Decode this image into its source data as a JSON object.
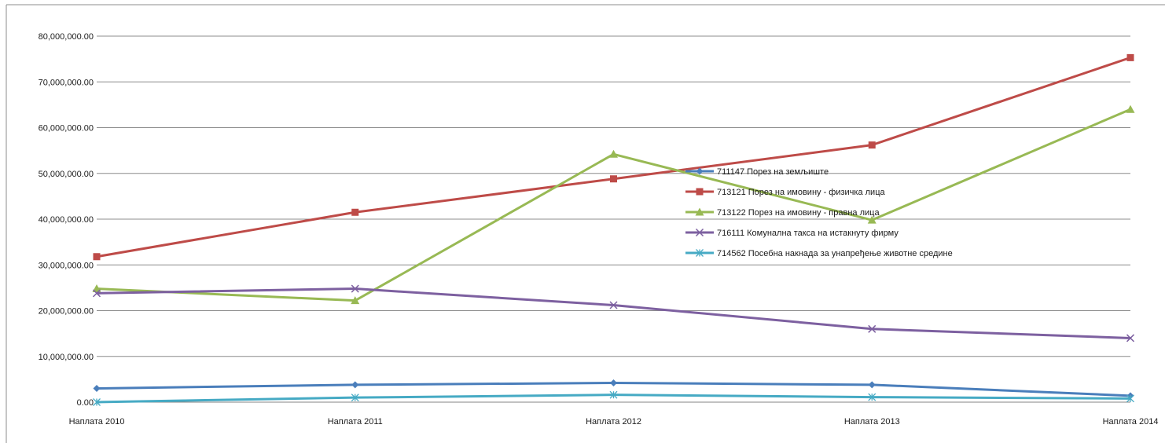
{
  "chart_data": {
    "type": "line",
    "title": "",
    "xlabel": "",
    "ylabel": "",
    "categories": [
      "Наплата 2010",
      "Наплата 2011",
      "Наплата 2012",
      "Наплата 2013",
      "Наплата 2014"
    ],
    "ylim": [
      0,
      80000000
    ],
    "y_ticks": [
      0,
      10000000,
      20000000,
      30000000,
      40000000,
      50000000,
      60000000,
      70000000,
      80000000
    ],
    "y_tick_labels": [
      "0.00",
      "10,000,000.00",
      "20,000,000.00",
      "30,000,000.00",
      "40,000,000.00",
      "50,000,000.00",
      "60,000,000.00",
      "70,000,000.00",
      "80,000,000.00"
    ],
    "grid": true,
    "legend_position": "center-right",
    "series": [
      {
        "name": "711147 Порез на земљиште",
        "color": "#4a7ebb",
        "marker": "diamond",
        "values": [
          3000000,
          3800000,
          4200000,
          3800000,
          1400000
        ]
      },
      {
        "name": "713121 Порез на имовину - физичка лица",
        "color": "#be4b48",
        "marker": "square",
        "values": [
          31800000,
          41500000,
          48800000,
          56200000,
          75300000
        ]
      },
      {
        "name": "713122 Порез на имовину - правна лица",
        "color": "#98b954",
        "marker": "triangle",
        "values": [
          24800000,
          22200000,
          54200000,
          39800000,
          64000000
        ]
      },
      {
        "name": "716111 Комунална такса на истакнуту фирму",
        "color": "#7d60a0",
        "marker": "x",
        "values": [
          23800000,
          24800000,
          21200000,
          16000000,
          14000000
        ]
      },
      {
        "name": "714562 Посебна накнада за унапређење животне средине",
        "color": "#46aac4",
        "marker": "star",
        "values": [
          0,
          1000000,
          1600000,
          1100000,
          800000
        ]
      }
    ]
  }
}
